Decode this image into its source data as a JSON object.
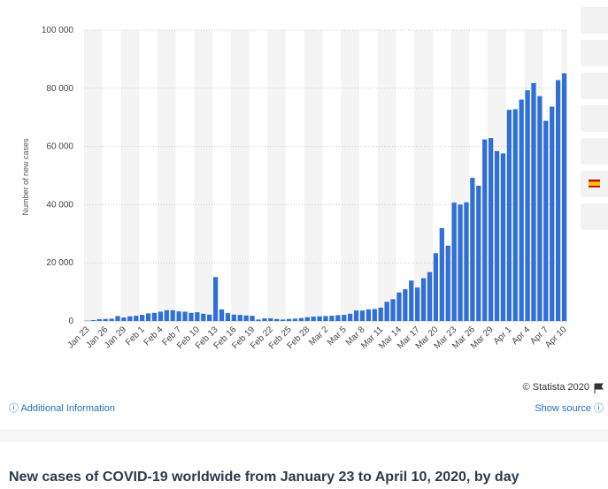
{
  "chart_data": {
    "type": "bar",
    "title": "New cases of COVID-19 worldwide from January 23 to April 10, 2020, by day",
    "ylabel": "Number of new cases",
    "source": "© Statista 2020",
    "additional_information": "Additional Information",
    "show_source": "Show source",
    "color": "#2f6fd6",
    "ylim": [
      0,
      100000
    ],
    "yticks": [
      0,
      {
        "value": 20000,
        "label": "20 000"
      },
      {
        "value": 40000,
        "label": "40 000"
      },
      {
        "value": 60000,
        "label": "60 000"
      },
      {
        "value": 80000,
        "label": "80 000"
      },
      {
        "value": 100000,
        "label": "100 000"
      }
    ],
    "categories": [
      "Jan 23",
      null,
      null,
      "Jan 26",
      null,
      null,
      "Jan 29",
      null,
      null,
      "Feb 1",
      null,
      null,
      "Feb 4",
      null,
      null,
      "Feb 7",
      null,
      null,
      "Feb 10",
      null,
      null,
      "Feb 13",
      null,
      null,
      "Feb 16",
      null,
      null,
      "Feb 19",
      null,
      null,
      "Feb 22",
      null,
      null,
      "Feb 25",
      null,
      null,
      "Feb 28",
      null,
      null,
      "Mar 2",
      null,
      null,
      "Mar 5",
      null,
      null,
      "Mar 8",
      null,
      null,
      "Mar 11",
      null,
      null,
      "Mar 14",
      null,
      null,
      "Mar 17",
      null,
      null,
      "Mar 20",
      null,
      null,
      "Mar 23",
      null,
      null,
      "Mar 26",
      null,
      null,
      "Mar 29",
      null,
      null,
      "Apr 1",
      null,
      null,
      "Apr 4",
      null,
      null,
      "Apr 7",
      null,
      null,
      "Apr 10"
    ],
    "values": [
      100,
      300,
      600,
      700,
      800,
      1700,
      1200,
      1600,
      1800,
      2100,
      2600,
      2800,
      3200,
      3700,
      3700,
      3300,
      3200,
      2800,
      3000,
      2500,
      2200,
      15100,
      4000,
      2700,
      2200,
      2100,
      1900,
      1800,
      500,
      900,
      900,
      700,
      500,
      700,
      800,
      1000,
      1300,
      1500,
      1600,
      1700,
      1800,
      2000,
      2100,
      2500,
      3600,
      3600,
      4000,
      4100,
      4600,
      6600,
      7500,
      9800,
      10900,
      13900,
      11500,
      14700,
      16800,
      23300,
      31900,
      25900,
      40700,
      40000,
      40800,
      49200,
      46500,
      62400,
      62900,
      58400,
      57600,
      72600,
      72800,
      76100,
      79300,
      81800,
      77300,
      68800,
      73700,
      82800,
      85100
    ]
  }
}
